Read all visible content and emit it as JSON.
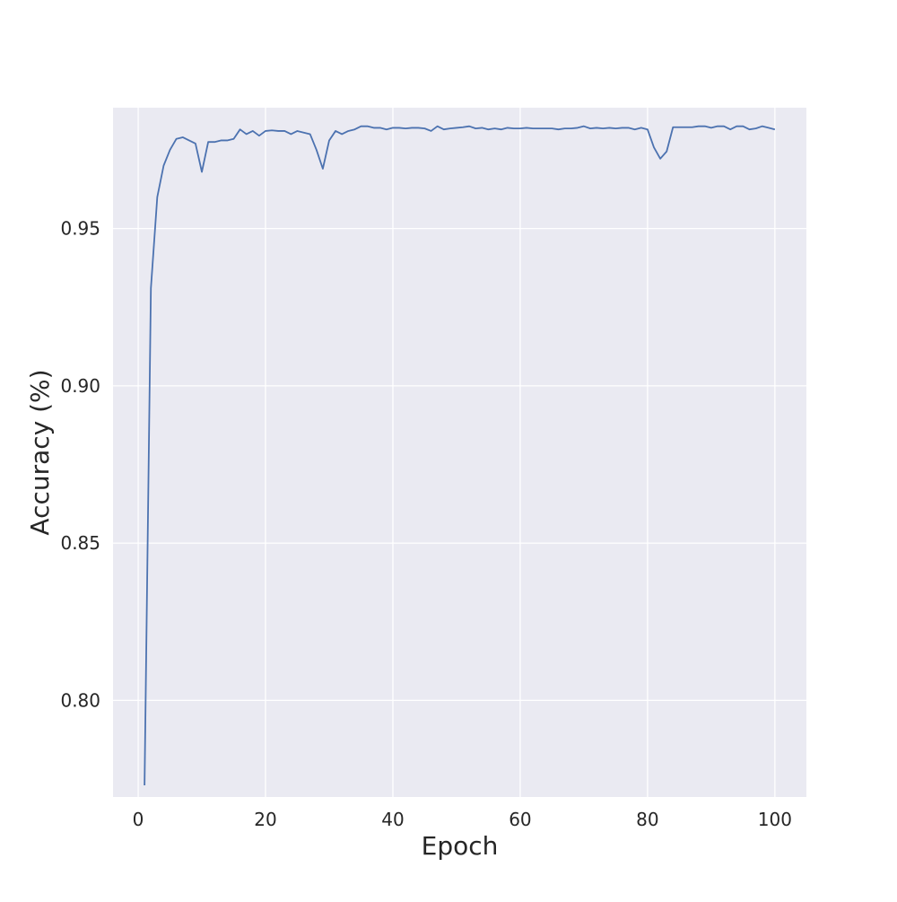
{
  "chart_data": {
    "type": "line",
    "xlabel": "Epoch",
    "ylabel": "Accuracy (%)",
    "xlim": [
      -3.95,
      104.95
    ],
    "ylim": [
      0.7693,
      0.9884
    ],
    "xticks": [
      0,
      20,
      40,
      60,
      80,
      100
    ],
    "xtick_labels": [
      "0",
      "20",
      "40",
      "60",
      "80",
      "100"
    ],
    "yticks": [
      0.8,
      0.85,
      0.9,
      0.95
    ],
    "ytick_labels": [
      "0.80",
      "0.85",
      "0.90",
      "0.95"
    ],
    "grid": true,
    "background_color": "#eaeaf2",
    "grid_color": "#ffffff",
    "series": [
      {
        "color": "#4c72b0",
        "x": [
          1,
          2,
          3,
          4,
          5,
          6,
          7,
          8,
          9,
          10,
          11,
          12,
          13,
          14,
          15,
          16,
          17,
          18,
          19,
          20,
          21,
          22,
          23,
          24,
          25,
          26,
          27,
          28,
          29,
          30,
          31,
          32,
          33,
          34,
          35,
          36,
          37,
          38,
          39,
          40,
          41,
          42,
          43,
          44,
          45,
          46,
          47,
          48,
          49,
          50,
          51,
          52,
          53,
          54,
          55,
          56,
          57,
          58,
          59,
          60,
          61,
          62,
          63,
          64,
          65,
          66,
          67,
          68,
          69,
          70,
          71,
          72,
          73,
          74,
          75,
          76,
          77,
          78,
          79,
          80,
          81,
          82,
          83,
          84,
          85,
          86,
          87,
          88,
          89,
          90,
          91,
          92,
          93,
          94,
          95,
          96,
          97,
          98,
          99,
          100
        ],
        "y": [
          0.773,
          0.931,
          0.96,
          0.97,
          0.975,
          0.9785,
          0.979,
          0.978,
          0.977,
          0.968,
          0.9775,
          0.9775,
          0.978,
          0.978,
          0.9785,
          0.9815,
          0.98,
          0.981,
          0.9795,
          0.981,
          0.9812,
          0.981,
          0.981,
          0.98,
          0.981,
          0.9805,
          0.98,
          0.975,
          0.969,
          0.978,
          0.981,
          0.98,
          0.981,
          0.9815,
          0.9825,
          0.9825,
          0.982,
          0.982,
          0.9815,
          0.982,
          0.982,
          0.9818,
          0.982,
          0.982,
          0.9818,
          0.981,
          0.9825,
          0.9815,
          0.9818,
          0.982,
          0.9822,
          0.9825,
          0.9818,
          0.982,
          0.9815,
          0.9818,
          0.9815,
          0.982,
          0.9818,
          0.9818,
          0.982,
          0.9818,
          0.9818,
          0.9818,
          0.9818,
          0.9815,
          0.9818,
          0.9818,
          0.982,
          0.9825,
          0.9818,
          0.982,
          0.9818,
          0.982,
          0.9818,
          0.982,
          0.982,
          0.9815,
          0.982,
          0.9815,
          0.9758,
          0.9722,
          0.9745,
          0.9822,
          0.9822,
          0.9822,
          0.9822,
          0.9825,
          0.9825,
          0.982,
          0.9825,
          0.9825,
          0.9815,
          0.9825,
          0.9825,
          0.9815,
          0.9818,
          0.9825,
          0.982,
          0.9815
        ]
      }
    ]
  }
}
